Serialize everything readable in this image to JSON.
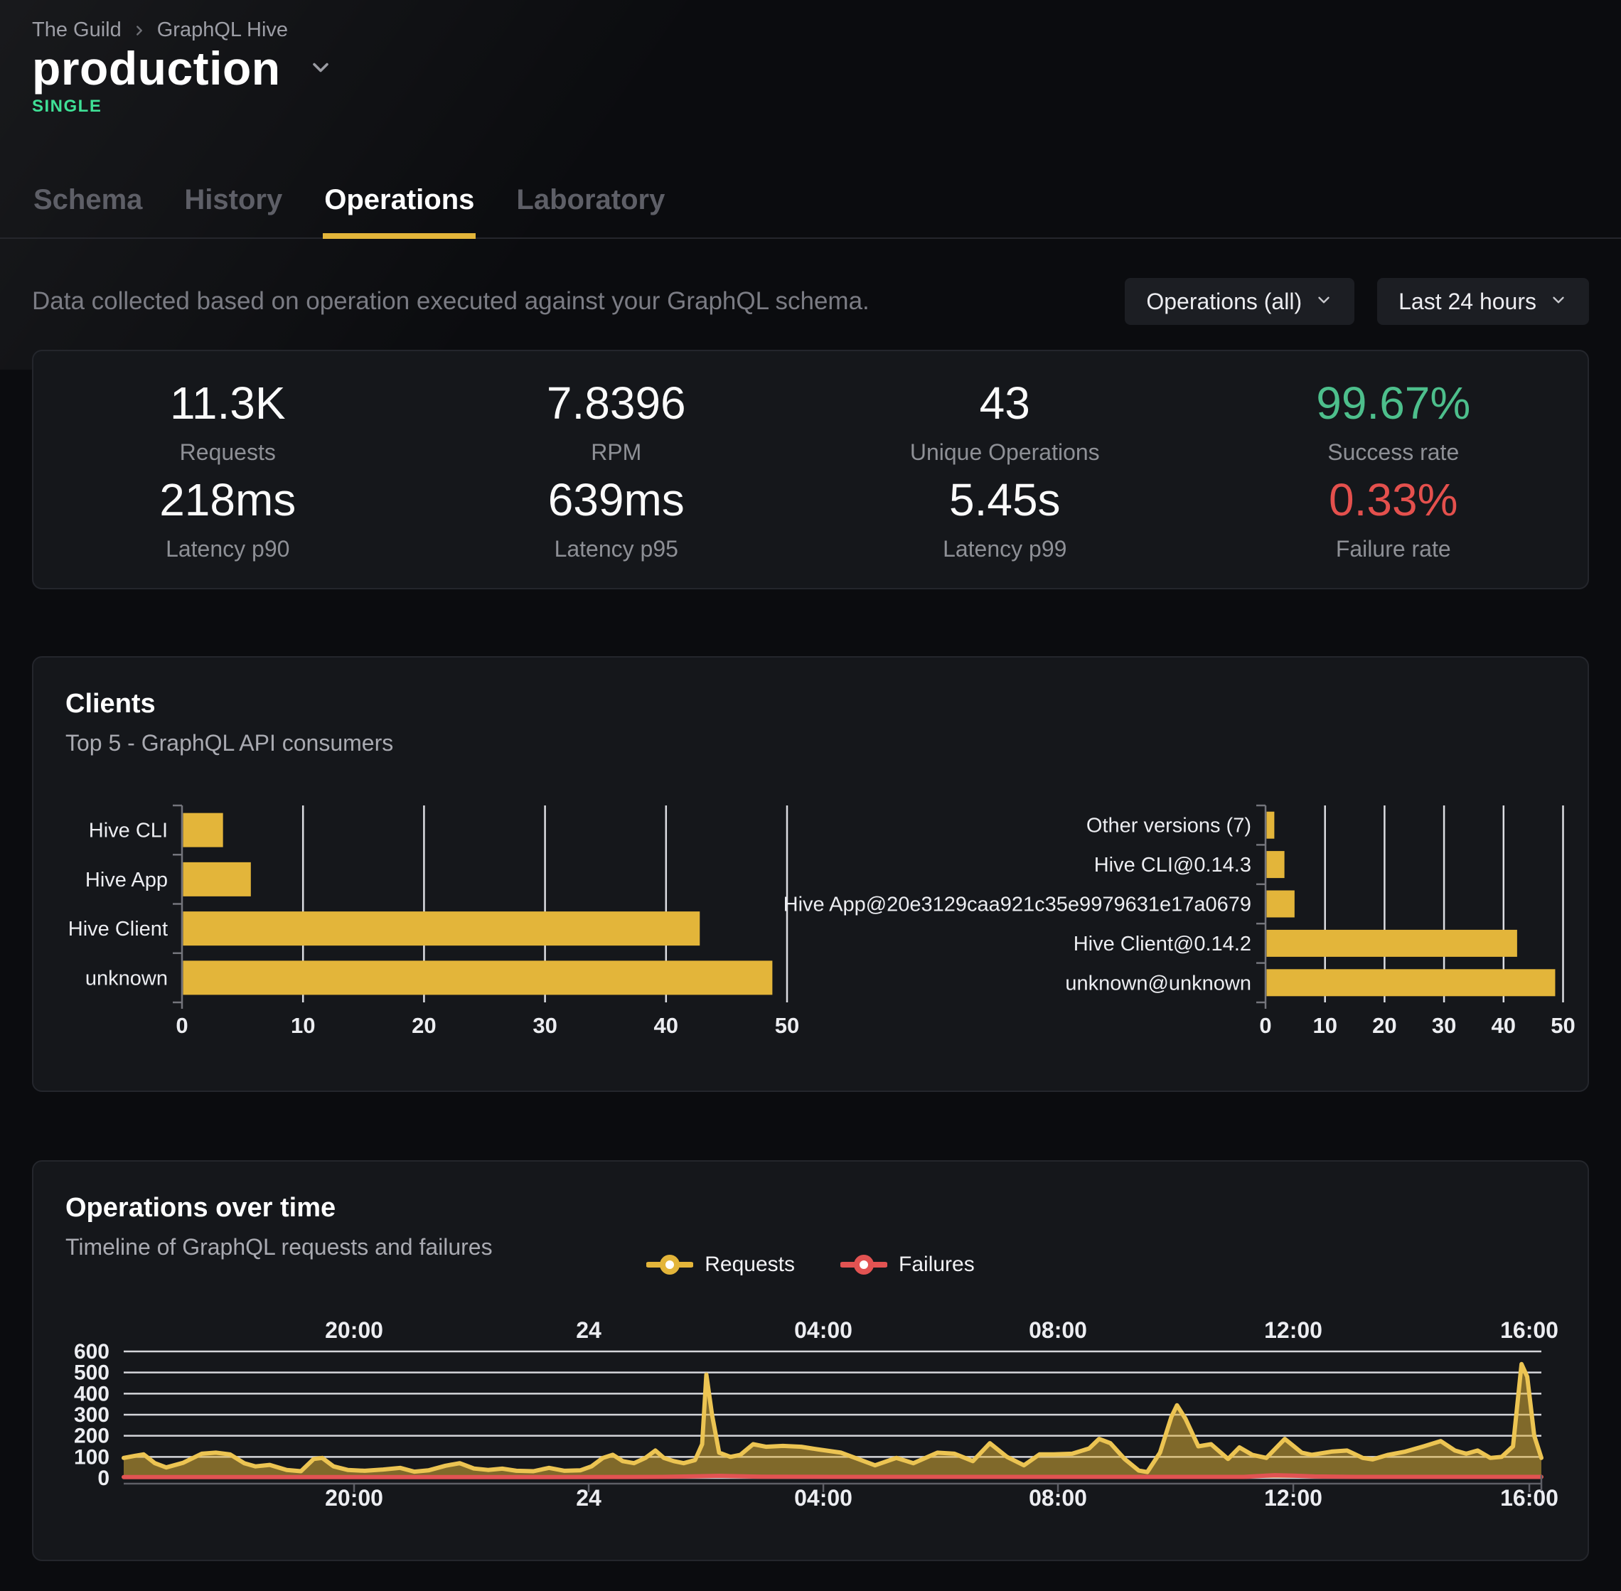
{
  "colors": {
    "accent": "#e3b53a",
    "success": "#4dbf8c",
    "failure": "#e4504d",
    "badge": "#3fe096",
    "requests_series": "#e3b53a",
    "failures_series": "#e25352"
  },
  "breadcrumb": {
    "org": "The Guild",
    "project": "GraphQL Hive"
  },
  "header": {
    "target_name": "production",
    "badge": "SINGLE"
  },
  "tabs": [
    {
      "label": "Schema",
      "active": false
    },
    {
      "label": "History",
      "active": false
    },
    {
      "label": "Operations",
      "active": true
    },
    {
      "label": "Laboratory",
      "active": false
    }
  ],
  "filters": {
    "description": "Data collected based on operation executed against your GraphQL schema.",
    "operations_dropdown": "Operations (all)",
    "period_dropdown": "Last 24 hours"
  },
  "stats": [
    {
      "value": "11.3K",
      "label": "Requests",
      "tone": "default"
    },
    {
      "value": "7.8396",
      "label": "RPM",
      "tone": "default"
    },
    {
      "value": "43",
      "label": "Unique Operations",
      "tone": "default"
    },
    {
      "value": "99.67%",
      "label": "Success rate",
      "tone": "success"
    },
    {
      "value": "218ms",
      "label": "Latency p90",
      "tone": "default"
    },
    {
      "value": "639ms",
      "label": "Latency p95",
      "tone": "default"
    },
    {
      "value": "5.45s",
      "label": "Latency p99",
      "tone": "default"
    },
    {
      "value": "0.33%",
      "label": "Failure rate",
      "tone": "failure"
    }
  ],
  "clients": {
    "title": "Clients",
    "subtitle": "Top 5 - GraphQL API consumers"
  },
  "operations_over_time": {
    "title": "Operations over time",
    "subtitle": "Timeline of GraphQL requests and failures"
  },
  "chart_data": [
    {
      "type": "bar",
      "group": "clients-by-name",
      "orientation": "horizontal",
      "categories": [
        "Hive CLI",
        "Hive App",
        "Hive Client",
        "unknown"
      ],
      "values": [
        3.3,
        5.6,
        42.7,
        48.7
      ],
      "xlim": [
        0,
        50
      ],
      "xticks": [
        0,
        10,
        20,
        30,
        40,
        50
      ],
      "grid": true
    },
    {
      "type": "bar",
      "group": "clients-by-version",
      "orientation": "horizontal",
      "categories": [
        "Other versions (7)",
        "Hive CLI@0.14.3",
        "Hive App@20e3129caa921c35e9979631e17a0679",
        "Hive Client@0.14.2",
        "unknown@unknown"
      ],
      "values": [
        1.3,
        3.0,
        4.7,
        42.1,
        48.5
      ],
      "xlim": [
        0,
        50
      ],
      "xticks": [
        0,
        10,
        20,
        30,
        40,
        50
      ],
      "grid": true
    },
    {
      "type": "area",
      "group": "operations-over-time",
      "title": "Operations over time",
      "xticks": [
        "20:00",
        "24",
        "04:00",
        "08:00",
        "12:00",
        "16:00"
      ],
      "bold_xtick": "24",
      "ylim": [
        0,
        600
      ],
      "yticks": [
        0,
        100,
        200,
        300,
        400,
        500,
        600
      ],
      "grid": true,
      "legend_position": "top-center",
      "series": [
        {
          "name": "Requests",
          "points": [
            [
              0,
              95
            ],
            [
              0.008,
              105
            ],
            [
              0.014,
              112
            ],
            [
              0.022,
              70
            ],
            [
              0.03,
              50
            ],
            [
              0.042,
              72
            ],
            [
              0.055,
              115
            ],
            [
              0.065,
              120
            ],
            [
              0.075,
              112
            ],
            [
              0.085,
              70
            ],
            [
              0.093,
              55
            ],
            [
              0.103,
              62
            ],
            [
              0.115,
              38
            ],
            [
              0.125,
              32
            ],
            [
              0.134,
              90
            ],
            [
              0.14,
              95
            ],
            [
              0.148,
              55
            ],
            [
              0.158,
              38
            ],
            [
              0.17,
              34
            ],
            [
              0.183,
              40
            ],
            [
              0.195,
              48
            ],
            [
              0.205,
              30
            ],
            [
              0.215,
              36
            ],
            [
              0.227,
              58
            ],
            [
              0.237,
              70
            ],
            [
              0.247,
              45
            ],
            [
              0.257,
              38
            ],
            [
              0.267,
              44
            ],
            [
              0.277,
              34
            ],
            [
              0.289,
              32
            ],
            [
              0.3,
              48
            ],
            [
              0.311,
              34
            ],
            [
              0.322,
              36
            ],
            [
              0.33,
              55
            ],
            [
              0.338,
              95
            ],
            [
              0.345,
              110
            ],
            [
              0.352,
              80
            ],
            [
              0.36,
              70
            ],
            [
              0.368,
              95
            ],
            [
              0.375,
              130
            ],
            [
              0.381,
              95
            ],
            [
              0.388,
              80
            ],
            [
              0.395,
              70
            ],
            [
              0.403,
              85
            ],
            [
              0.408,
              160
            ],
            [
              0.411,
              490
            ],
            [
              0.415,
              300
            ],
            [
              0.42,
              120
            ],
            [
              0.428,
              100
            ],
            [
              0.435,
              110
            ],
            [
              0.444,
              160
            ],
            [
              0.453,
              148
            ],
            [
              0.465,
              152
            ],
            [
              0.478,
              148
            ],
            [
              0.49,
              135
            ],
            [
              0.506,
              120
            ],
            [
              0.518,
              90
            ],
            [
              0.53,
              60
            ],
            [
              0.545,
              95
            ],
            [
              0.557,
              70
            ],
            [
              0.574,
              120
            ],
            [
              0.586,
              115
            ],
            [
              0.599,
              80
            ],
            [
              0.611,
              165
            ],
            [
              0.623,
              100
            ],
            [
              0.635,
              60
            ],
            [
              0.646,
              112
            ],
            [
              0.656,
              112
            ],
            [
              0.669,
              115
            ],
            [
              0.681,
              140
            ],
            [
              0.688,
              185
            ],
            [
              0.696,
              165
            ],
            [
              0.706,
              90
            ],
            [
              0.716,
              35
            ],
            [
              0.722,
              28
            ],
            [
              0.731,
              120
            ],
            [
              0.739,
              290
            ],
            [
              0.743,
              345
            ],
            [
              0.749,
              280
            ],
            [
              0.758,
              150
            ],
            [
              0.767,
              160
            ],
            [
              0.779,
              90
            ],
            [
              0.787,
              145
            ],
            [
              0.796,
              110
            ],
            [
              0.806,
              95
            ],
            [
              0.819,
              185
            ],
            [
              0.831,
              120
            ],
            [
              0.838,
              110
            ],
            [
              0.852,
              125
            ],
            [
              0.863,
              130
            ],
            [
              0.874,
              95
            ],
            [
              0.881,
              88
            ],
            [
              0.892,
              110
            ],
            [
              0.904,
              125
            ],
            [
              0.917,
              150
            ],
            [
              0.929,
              175
            ],
            [
              0.939,
              130
            ],
            [
              0.947,
              115
            ],
            [
              0.955,
              130
            ],
            [
              0.964,
              95
            ],
            [
              0.972,
              100
            ],
            [
              0.98,
              150
            ],
            [
              0.986,
              540
            ],
            [
              0.99,
              480
            ],
            [
              0.995,
              200
            ],
            [
              1,
              95
            ]
          ]
        },
        {
          "name": "Failures",
          "points": [
            [
              0,
              4
            ],
            [
              0.1,
              4
            ],
            [
              0.2,
              4
            ],
            [
              0.3,
              4
            ],
            [
              0.38,
              5
            ],
            [
              0.405,
              8
            ],
            [
              0.42,
              10
            ],
            [
              0.45,
              6
            ],
            [
              0.5,
              5
            ],
            [
              0.55,
              5
            ],
            [
              0.6,
              5
            ],
            [
              0.65,
              5
            ],
            [
              0.7,
              5
            ],
            [
              0.75,
              5
            ],
            [
              0.79,
              5
            ],
            [
              0.812,
              13
            ],
            [
              0.825,
              11
            ],
            [
              0.84,
              7
            ],
            [
              0.87,
              5
            ],
            [
              0.9,
              5
            ],
            [
              0.95,
              5
            ],
            [
              1,
              5
            ]
          ]
        }
      ]
    }
  ]
}
